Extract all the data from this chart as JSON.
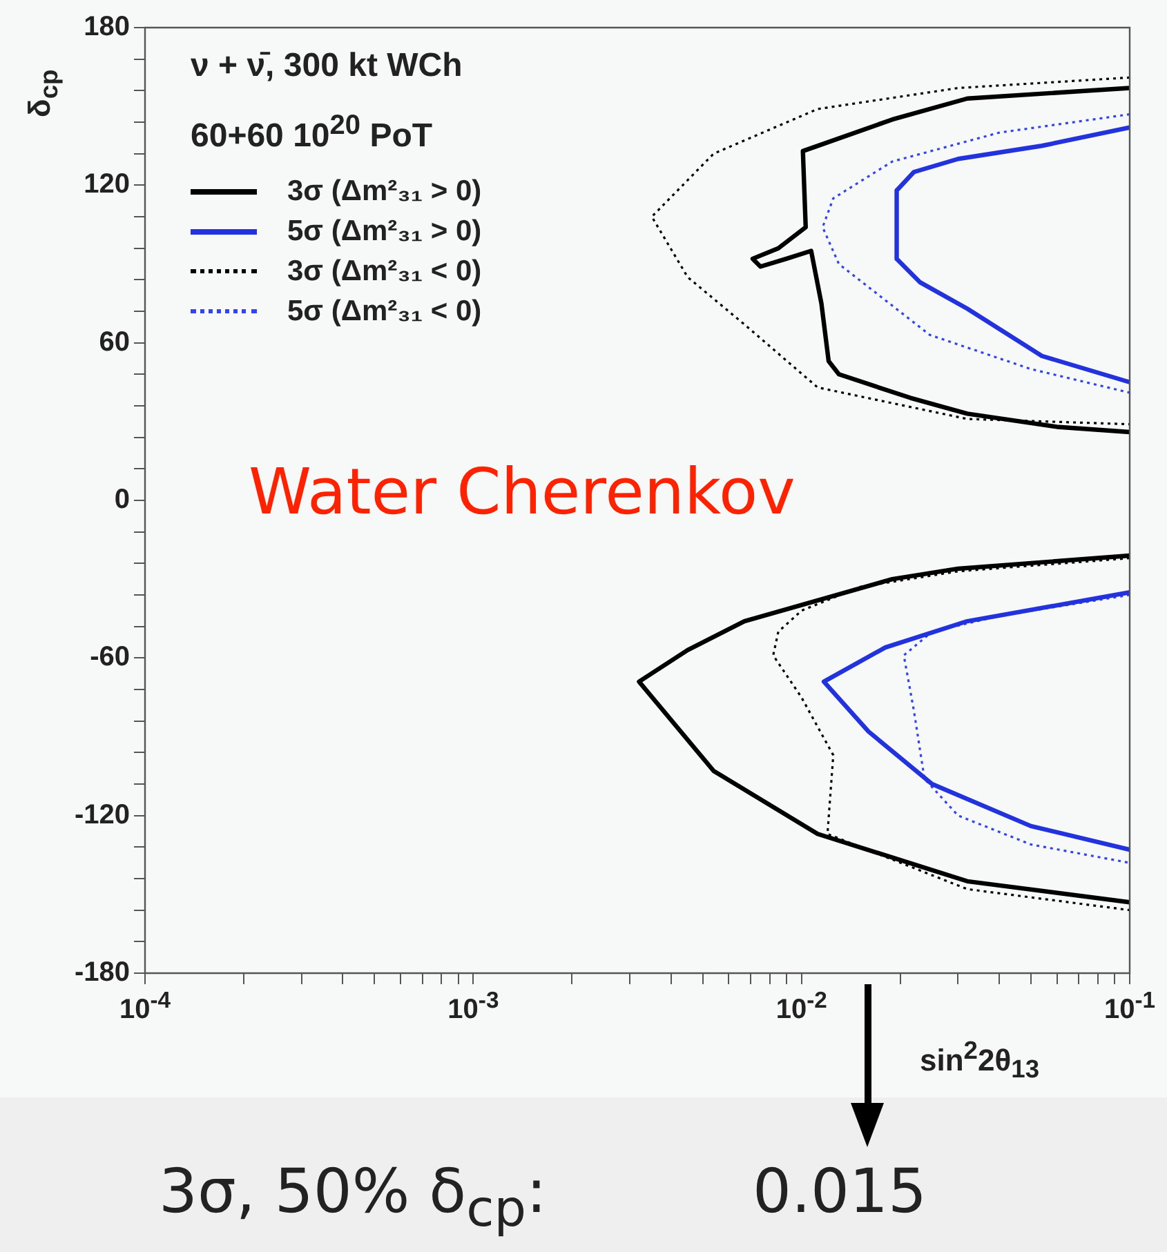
{
  "chart_data": {
    "type": "line",
    "title": "ν + ν̄, 300 kt WCh",
    "subtitle": "60+60 10$^{20}$ PoT",
    "xlabel": "sin$^{2}$2θ$_{13}$",
    "ylabel": "δ$_{cp}$",
    "log": "x",
    "grid": false,
    "legend": "top left",
    "xlim": [
      0.0001,
      0.1
    ],
    "ylim": [
      -180,
      180
    ],
    "xticks": [
      {
        "value": 0.0001,
        "label": "10$^{-4}$"
      },
      {
        "value": 0.0002,
        "label": null
      },
      {
        "value": 0.0003,
        "label": null
      },
      {
        "value": 0.0004,
        "label": null
      },
      {
        "value": 0.0005,
        "label": null
      },
      {
        "value": 0.0006,
        "label": null
      },
      {
        "value": 0.0007,
        "label": null
      },
      {
        "value": 0.0008,
        "label": null
      },
      {
        "value": 0.0009,
        "label": null
      },
      {
        "value": 0.001,
        "label": "10$^{-3}$"
      },
      {
        "value": 0.002,
        "label": null
      },
      {
        "value": 0.003,
        "label": null
      },
      {
        "value": 0.004,
        "label": null
      },
      {
        "value": 0.005,
        "label": null
      },
      {
        "value": 0.006,
        "label": null
      },
      {
        "value": 0.007,
        "label": null
      },
      {
        "value": 0.008,
        "label": null
      },
      {
        "value": 0.009,
        "label": null
      },
      {
        "value": 0.01,
        "label": "10$^{-2}$"
      },
      {
        "value": 0.02,
        "label": null
      },
      {
        "value": 0.03,
        "label": null
      },
      {
        "value": 0.04,
        "label": null
      },
      {
        "value": 0.05,
        "label": null
      },
      {
        "value": 0.06,
        "label": null
      },
      {
        "value": 0.07,
        "label": null
      },
      {
        "value": 0.08,
        "label": null
      },
      {
        "value": 0.09,
        "label": null
      },
      {
        "value": 0.1,
        "label": "10$^{-1}$"
      }
    ],
    "yticks": [
      -180,
      {
        "value": -168,
        "label": null
      },
      {
        "value": -156,
        "label": null
      },
      {
        "value": -144,
        "label": null
      },
      {
        "value": -132,
        "label": null
      },
      -120,
      {
        "value": -108,
        "label": null
      },
      {
        "value": -96,
        "label": null
      },
      {
        "value": -84,
        "label": null
      },
      {
        "value": -72,
        "label": null
      },
      -60,
      {
        "value": -48,
        "label": null
      },
      {
        "value": -36,
        "label": null
      },
      {
        "value": -24,
        "label": null
      },
      {
        "value": -12,
        "label": null
      },
      0,
      {
        "value": 12,
        "label": null
      },
      {
        "value": 24,
        "label": null
      },
      {
        "value": 36,
        "label": null
      },
      {
        "value": 48,
        "label": null
      },
      60,
      {
        "value": 72,
        "label": null
      },
      {
        "value": 84,
        "label": null
      },
      {
        "value": 96,
        "label": null
      },
      {
        "value": 108,
        "label": null
      },
      120,
      {
        "value": 132,
        "label": null
      },
      {
        "value": 144,
        "label": null
      },
      {
        "value": 156,
        "label": null
      },
      {
        "value": 168,
        "label": null
      },
      180
    ],
    "series": [
      {
        "name": "3σ (Δm²₃₁ > 0)",
        "color": "#000000",
        "line_style": "solid",
        "x": [
          0.1,
          0.032,
          0.0189,
          0.0101,
          0.0103,
          0.0085,
          0.0071,
          0.0075,
          0.009,
          0.0107,
          0.0115,
          0.0121,
          0.013,
          0.0215,
          0.032,
          0.06,
          0.1,
          null,
          0.1,
          0.03,
          0.0189,
          0.0067,
          0.0045,
          0.0032,
          0.0054,
          0.0112,
          0.032,
          0.1
        ],
        "values": [
          157,
          153,
          145,
          133,
          104,
          96,
          92,
          89,
          92,
          95,
          75,
          53,
          48,
          39,
          33,
          28,
          26,
          null,
          -21,
          -26,
          -30,
          -46,
          -57,
          -69,
          -103,
          -127,
          -145,
          -153
        ]
      },
      {
        "name": "5σ (Δm²₃₁ > 0)",
        "color": "#2233dd",
        "line_style": "solid",
        "x": [
          0.1,
          0.054,
          0.03,
          0.022,
          0.0195,
          0.0195,
          0.023,
          0.032,
          0.054,
          0.1,
          null,
          0.1,
          0.032,
          0.018,
          0.0117,
          0.016,
          0.025,
          0.05,
          0.1
        ],
        "values": [
          142,
          135,
          130,
          125,
          118,
          92,
          83,
          73,
          55,
          45,
          null,
          -35,
          -46,
          -56,
          -69,
          -88,
          -108,
          -124,
          -133
        ]
      },
      {
        "name": "3σ (Δm²₃₁ < 0)",
        "color": "#000000",
        "line_style": "dotted",
        "x": [
          0.1,
          0.03,
          0.0112,
          0.0054,
          0.0035,
          0.0045,
          0.0067,
          0.0112,
          0.032,
          0.1,
          null,
          0.1,
          0.03,
          0.015,
          0.01,
          0.0085,
          0.0082,
          0.01,
          0.0125,
          0.012,
          0.032,
          0.1
        ],
        "values": [
          161,
          157,
          149,
          132,
          108,
          85,
          67,
          43,
          31,
          29,
          null,
          -22,
          -27,
          -33,
          -42,
          -50,
          -59,
          -75,
          -97,
          -127,
          -148,
          -156
        ]
      },
      {
        "name": "5σ (Δm²₃₁ < 0)",
        "color": "#3344ee",
        "line_style": "dotted",
        "x": [
          0.1,
          0.04,
          0.0189,
          0.0125,
          0.0116,
          0.013,
          0.0246,
          0.05,
          0.1,
          null,
          0.1,
          0.04,
          0.025,
          0.0205,
          0.022,
          0.0237,
          0.03,
          0.05,
          0.1
        ],
        "values": [
          147,
          140,
          129,
          115,
          104,
          90,
          63,
          50,
          41,
          null,
          -36,
          -44,
          -50,
          -59,
          -80,
          -106,
          -120,
          -131,
          -138
        ]
      }
    ],
    "annotations": [
      "Water Cherenkov",
      "3σ, 50% δ$_{cp}$:",
      "0.015"
    ]
  }
}
